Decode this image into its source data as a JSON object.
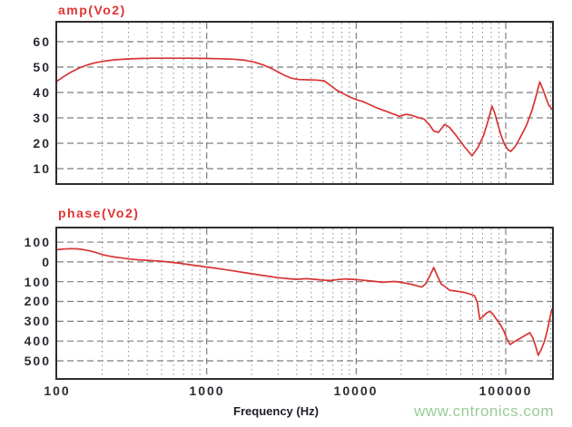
{
  "window": {
    "background": "#ffffff"
  },
  "colors": {
    "curve": "#d83434",
    "plot_title": "#e03333",
    "grid_major": "#7e7e7e",
    "grid_minor": "#909090",
    "plot_border": "#2e2e2e",
    "tick_text": "#2b2b33",
    "axis_label_text": "#1c1c24",
    "watermark_text": "#99cc99"
  },
  "xlabel": "Frequency (Hz)",
  "watermark": "www.cntronics.com",
  "x_tick_labels": [
    "100",
    "1000",
    "10000",
    "100000"
  ],
  "chart_data": [
    {
      "id": "amp",
      "type": "line",
      "title": "amp(Vo2)",
      "x_scale": "log",
      "x_range": [
        100,
        204000
      ],
      "x_tick_values": [
        100,
        1000,
        10000,
        100000
      ],
      "x_tick_labels": [
        "100",
        "1000",
        "10000",
        "100000"
      ],
      "xlabel": "Frequency (Hz)",
      "y_tick_labels": [
        "60",
        "50",
        "40",
        "30",
        "20",
        "10"
      ],
      "y_tick_values": [
        60,
        50,
        40,
        30,
        20,
        10
      ],
      "y_range": [
        4.3,
        67.5
      ],
      "grid": "dashed",
      "legend": "none",
      "series": [
        {
          "name": "amp(Vo2)",
          "color": "#d83434",
          "points": [
            [
              100,
              44.5
            ],
            [
              110,
              46.2
            ],
            [
              125,
              48.2
            ],
            [
              140,
              49.6
            ],
            [
              160,
              50.9
            ],
            [
              180,
              51.7
            ],
            [
              200,
              52.2
            ],
            [
              230,
              52.7
            ],
            [
              260,
              53.0
            ],
            [
              300,
              53.2
            ],
            [
              360,
              53.4
            ],
            [
              450,
              53.5
            ],
            [
              600,
              53.5
            ],
            [
              800,
              53.5
            ],
            [
              1000,
              53.4
            ],
            [
              1250,
              53.3
            ],
            [
              1500,
              53.1
            ],
            [
              1800,
              52.7
            ],
            [
              2100,
              51.9
            ],
            [
              2400,
              50.8
            ],
            [
              2700,
              49.5
            ],
            [
              3000,
              48.1
            ],
            [
              3300,
              46.8
            ],
            [
              3700,
              45.6
            ],
            [
              4100,
              45.1
            ],
            [
              4700,
              45.0
            ],
            [
              5400,
              44.9
            ],
            [
              6100,
              44.6
            ],
            [
              6700,
              42.9
            ],
            [
              7300,
              41.2
            ],
            [
              8100,
              39.7
            ],
            [
              9000,
              38.3
            ],
            [
              10000,
              37.2
            ],
            [
              11000,
              36.5
            ],
            [
              12000,
              35.5
            ],
            [
              13500,
              34.1
            ],
            [
              15000,
              33.1
            ],
            [
              17000,
              31.9
            ],
            [
              19500,
              30.6
            ],
            [
              21500,
              31.4
            ],
            [
              23500,
              31.0
            ],
            [
              26000,
              30.1
            ],
            [
              28500,
              29.5
            ],
            [
              31000,
              27.1
            ],
            [
              33000,
              24.8
            ],
            [
              35500,
              24.3
            ],
            [
              39000,
              27.4
            ],
            [
              42000,
              26.3
            ],
            [
              47000,
              22.8
            ],
            [
              53000,
              18.6
            ],
            [
              59500,
              15.1
            ],
            [
              65000,
              18.2
            ],
            [
              71000,
              23.0
            ],
            [
              76000,
              28.6
            ],
            [
              81000,
              34.6
            ],
            [
              84500,
              31.8
            ],
            [
              88000,
              28.0
            ],
            [
              93000,
              23.2
            ],
            [
              98000,
              19.6
            ],
            [
              103000,
              17.6
            ],
            [
              108000,
              16.8
            ],
            [
              116000,
              18.8
            ],
            [
              126000,
              22.6
            ],
            [
              138000,
              27.2
            ],
            [
              150000,
              33.0
            ],
            [
              160000,
              38.8
            ],
            [
              169000,
              44.2
            ],
            [
              177000,
              41.4
            ],
            [
              186000,
              37.8
            ],
            [
              194000,
              35.0
            ],
            [
              204000,
              33.4
            ]
          ]
        }
      ]
    },
    {
      "id": "phase",
      "type": "line",
      "title": "phase(Vo2)",
      "x_scale": "log",
      "x_range": [
        100,
        204000
      ],
      "x_tick_values": [
        100,
        1000,
        10000,
        100000
      ],
      "x_tick_labels": [
        "100",
        "1000",
        "10000",
        "100000"
      ],
      "xlabel": "Frequency (Hz)",
      "y_tick_labels": [
        "100",
        "0",
        "100",
        "200",
        "300",
        "400",
        "500"
      ],
      "y_tick_values": [
        100,
        0,
        -100,
        -200,
        -300,
        -400,
        -500
      ],
      "y_range": [
        -587,
        169
      ],
      "grid": "dashed",
      "legend": "none",
      "series": [
        {
          "name": "phase(Vo2)",
          "color": "#d83434",
          "points": [
            [
              100,
              62
            ],
            [
              110,
              65
            ],
            [
              122,
              67
            ],
            [
              136,
              66
            ],
            [
              150,
              62
            ],
            [
              165,
              56
            ],
            [
              182,
              47
            ],
            [
              200,
              37
            ],
            [
              220,
              30
            ],
            [
              245,
              24
            ],
            [
              275,
              19
            ],
            [
              310,
              14
            ],
            [
              350,
              10.5
            ],
            [
              400,
              8
            ],
            [
              450,
              5.5
            ],
            [
              500,
              3
            ],
            [
              560,
              -1
            ],
            [
              630,
              -5
            ],
            [
              710,
              -10
            ],
            [
              800,
              -16
            ],
            [
              900,
              -21
            ],
            [
              1000,
              -26
            ],
            [
              1150,
              -32
            ],
            [
              1300,
              -38
            ],
            [
              1500,
              -45
            ],
            [
              1750,
              -53
            ],
            [
              2000,
              -60
            ],
            [
              2300,
              -67
            ],
            [
              2650,
              -74
            ],
            [
              3000,
              -80
            ],
            [
              3500,
              -85
            ],
            [
              4000,
              -88
            ],
            [
              4600,
              -85
            ],
            [
              5300,
              -88
            ],
            [
              6000,
              -92
            ],
            [
              6800,
              -94
            ],
            [
              7600,
              -89
            ],
            [
              8500,
              -86
            ],
            [
              9500,
              -88
            ],
            [
              10500,
              -91
            ],
            [
              12000,
              -95
            ],
            [
              13500,
              -99
            ],
            [
              15000,
              -103
            ],
            [
              16500,
              -101
            ],
            [
              18000,
              -99
            ],
            [
              20000,
              -103
            ],
            [
              22000,
              -109
            ],
            [
              24000,
              -115
            ],
            [
              26000,
              -123
            ],
            [
              27500,
              -127
            ],
            [
              29000,
              -112
            ],
            [
              31000,
              -72
            ],
            [
              33000,
              -28
            ],
            [
              35000,
              -72
            ],
            [
              37000,
              -112
            ],
            [
              39500,
              -126
            ],
            [
              42000,
              -143
            ],
            [
              46000,
              -147
            ],
            [
              50000,
              -151
            ],
            [
              54000,
              -156
            ],
            [
              58000,
              -163
            ],
            [
              62000,
              -172
            ],
            [
              64500,
              -205
            ],
            [
              67000,
              -290
            ],
            [
              70000,
              -278
            ],
            [
              74000,
              -260
            ],
            [
              78000,
              -250
            ],
            [
              82000,
              -263
            ],
            [
              87000,
              -292
            ],
            [
              92000,
              -316
            ],
            [
              97000,
              -348
            ],
            [
              102000,
              -390
            ],
            [
              107000,
              -418
            ],
            [
              115000,
              -402
            ],
            [
              125000,
              -386
            ],
            [
              135000,
              -371
            ],
            [
              145000,
              -358
            ],
            [
              152000,
              -386
            ],
            [
              158000,
              -422
            ],
            [
              165000,
              -472
            ],
            [
              172000,
              -446
            ],
            [
              181000,
              -405
            ],
            [
              190000,
              -345
            ],
            [
              198000,
              -278
            ],
            [
              204000,
              -238
            ]
          ]
        }
      ]
    }
  ]
}
